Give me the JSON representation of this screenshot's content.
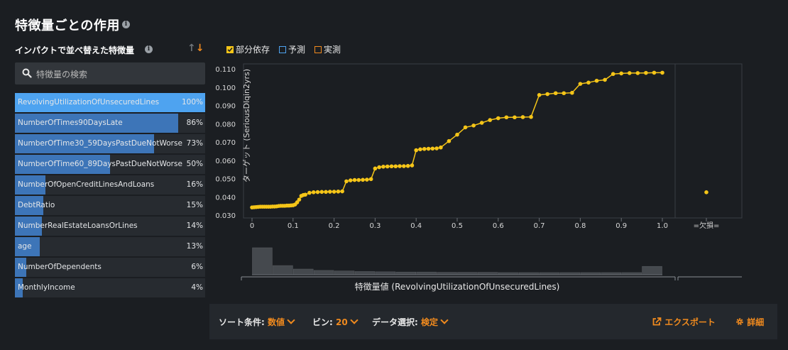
{
  "header": {
    "title": "特徴量ごとの作用",
    "info_icon": "info-icon"
  },
  "panel": {
    "subtitle": "インパクトで並べ替えた特徴量",
    "sort_up_icon": "arrow-up-icon",
    "sort_down_icon": "arrow-down-icon",
    "sort_up_glyph": "↑",
    "sort_down_glyph": "↓",
    "search": {
      "placeholder": "特徴量の検索",
      "value": ""
    }
  },
  "features": [
    {
      "name": "RevolvingUtilizationOfUnsecuredLines",
      "pct_label": "100%",
      "impact": 1.0,
      "selected": true
    },
    {
      "name": "NumberOfTimes90DaysLate",
      "pct_label": "86%",
      "impact": 0.86,
      "selected": false
    },
    {
      "name": "NumberOfTime30_59DaysPastDueNotWorse",
      "pct_label": "73%",
      "impact": 0.73,
      "selected": false
    },
    {
      "name": "NumberOfTime60_89DaysPastDueNotWorse",
      "pct_label": "50%",
      "impact": 0.5,
      "selected": false
    },
    {
      "name": "NumberOfOpenCreditLinesAndLoans",
      "pct_label": "16%",
      "impact": 0.16,
      "selected": false
    },
    {
      "name": "DebtRatio",
      "pct_label": "15%",
      "impact": 0.15,
      "selected": false
    },
    {
      "name": "NumberRealEstateLoansOrLines",
      "pct_label": "14%",
      "impact": 0.14,
      "selected": false
    },
    {
      "name": "age",
      "pct_label": "13%",
      "impact": 0.13,
      "selected": false
    },
    {
      "name": "NumberOfDependents",
      "pct_label": "6%",
      "impact": 0.06,
      "selected": false
    },
    {
      "name": "MonthlyIncome",
      "pct_label": "4%",
      "impact": 0.04,
      "selected": false
    }
  ],
  "legend": [
    {
      "label": "部分依存",
      "checked": true,
      "color": "#f5c518"
    },
    {
      "label": "予測",
      "checked": false,
      "color": "#4ea3f0"
    },
    {
      "label": "実測",
      "checked": false,
      "color": "#f08a1e"
    }
  ],
  "chart_data": {
    "type": "line",
    "ylabel": "ターゲット (SeriousDlqin2yrs)",
    "xlabel": "特徴量値 (RevolvingUtilizationOfUnsecuredLines)",
    "xlim": [
      0,
      1.0
    ],
    "ylim": [
      0.03,
      0.11
    ],
    "x_ticks": [
      "0",
      "0.1",
      "0.2",
      "0.3",
      "0.4",
      "0.5",
      "0.6",
      "0.7",
      "0.8",
      "0.9",
      "1.0"
    ],
    "y_ticks": [
      "0.030",
      "0.040",
      "0.050",
      "0.060",
      "0.070",
      "0.080",
      "0.090",
      "0.100",
      "0.110"
    ],
    "missing_label": "=欠損=",
    "missing_value": 0.0425,
    "line_color": "#f5c518",
    "series": [
      {
        "name": "部分依存",
        "points": [
          [
            0.0,
            0.0342
          ],
          [
            0.005,
            0.0343
          ],
          [
            0.01,
            0.0344
          ],
          [
            0.015,
            0.0345
          ],
          [
            0.02,
            0.0346
          ],
          [
            0.025,
            0.0346
          ],
          [
            0.03,
            0.0346
          ],
          [
            0.035,
            0.0346
          ],
          [
            0.04,
            0.0346
          ],
          [
            0.045,
            0.0346
          ],
          [
            0.05,
            0.0347
          ],
          [
            0.055,
            0.0347
          ],
          [
            0.06,
            0.0348
          ],
          [
            0.065,
            0.035
          ],
          [
            0.07,
            0.0351
          ],
          [
            0.075,
            0.0351
          ],
          [
            0.08,
            0.0351
          ],
          [
            0.085,
            0.0352
          ],
          [
            0.09,
            0.0352
          ],
          [
            0.095,
            0.0353
          ],
          [
            0.1,
            0.0354
          ],
          [
            0.105,
            0.0358
          ],
          [
            0.11,
            0.037
          ],
          [
            0.115,
            0.0385
          ],
          [
            0.12,
            0.0405
          ],
          [
            0.125,
            0.041
          ],
          [
            0.13,
            0.0412
          ],
          [
            0.14,
            0.0422
          ],
          [
            0.15,
            0.0425
          ],
          [
            0.16,
            0.0426
          ],
          [
            0.17,
            0.0427
          ],
          [
            0.18,
            0.0427
          ],
          [
            0.19,
            0.0428
          ],
          [
            0.2,
            0.0428
          ],
          [
            0.21,
            0.0429
          ],
          [
            0.22,
            0.043
          ],
          [
            0.23,
            0.0485
          ],
          [
            0.24,
            0.049
          ],
          [
            0.25,
            0.0492
          ],
          [
            0.26,
            0.0492
          ],
          [
            0.27,
            0.0493
          ],
          [
            0.28,
            0.0494
          ],
          [
            0.29,
            0.0497
          ],
          [
            0.3,
            0.0555
          ],
          [
            0.31,
            0.0562
          ],
          [
            0.32,
            0.0565
          ],
          [
            0.33,
            0.0566
          ],
          [
            0.34,
            0.0567
          ],
          [
            0.35,
            0.0567
          ],
          [
            0.36,
            0.0568
          ],
          [
            0.37,
            0.0568
          ],
          [
            0.38,
            0.0569
          ],
          [
            0.39,
            0.0572
          ],
          [
            0.4,
            0.0655
          ],
          [
            0.41,
            0.066
          ],
          [
            0.42,
            0.0662
          ],
          [
            0.43,
            0.0663
          ],
          [
            0.44,
            0.0664
          ],
          [
            0.45,
            0.0665
          ],
          [
            0.46,
            0.067
          ],
          [
            0.48,
            0.0705
          ],
          [
            0.5,
            0.074
          ],
          [
            0.52,
            0.078
          ],
          [
            0.54,
            0.079
          ],
          [
            0.56,
            0.0805
          ],
          [
            0.58,
            0.082
          ],
          [
            0.6,
            0.083
          ],
          [
            0.62,
            0.0835
          ],
          [
            0.64,
            0.0835
          ],
          [
            0.66,
            0.0836
          ],
          [
            0.68,
            0.0837
          ],
          [
            0.7,
            0.0957
          ],
          [
            0.72,
            0.0962
          ],
          [
            0.74,
            0.0967
          ],
          [
            0.76,
            0.0967
          ],
          [
            0.78,
            0.0969
          ],
          [
            0.8,
            0.1018
          ],
          [
            0.82,
            0.1025
          ],
          [
            0.84,
            0.1035
          ],
          [
            0.86,
            0.104
          ],
          [
            0.88,
            0.1072
          ],
          [
            0.9,
            0.1075
          ],
          [
            0.92,
            0.1077
          ],
          [
            0.94,
            0.1077
          ],
          [
            0.96,
            0.1078
          ],
          [
            0.98,
            0.1079
          ],
          [
            1.0,
            0.1079
          ]
        ]
      }
    ],
    "histogram": {
      "counts": [
        1.0,
        0.34,
        0.21,
        0.16,
        0.14,
        0.12,
        0.11,
        0.1,
        0.1,
        0.09,
        0.09,
        0.09,
        0.08,
        0.08,
        0.08,
        0.08,
        0.08,
        0.08,
        0.08,
        0.31
      ],
      "missing_count": 0.0
    }
  },
  "bottom_bar": {
    "sort_label": "ソート条件:",
    "sort_value": "数値",
    "bins_label": "ビン:",
    "bins_value": "20",
    "data_label": "データ選択:",
    "data_value": "検定",
    "export_label": "エクスポート",
    "export_icon": "export-icon",
    "details_label": "詳細",
    "details_icon": "gear-icon"
  }
}
